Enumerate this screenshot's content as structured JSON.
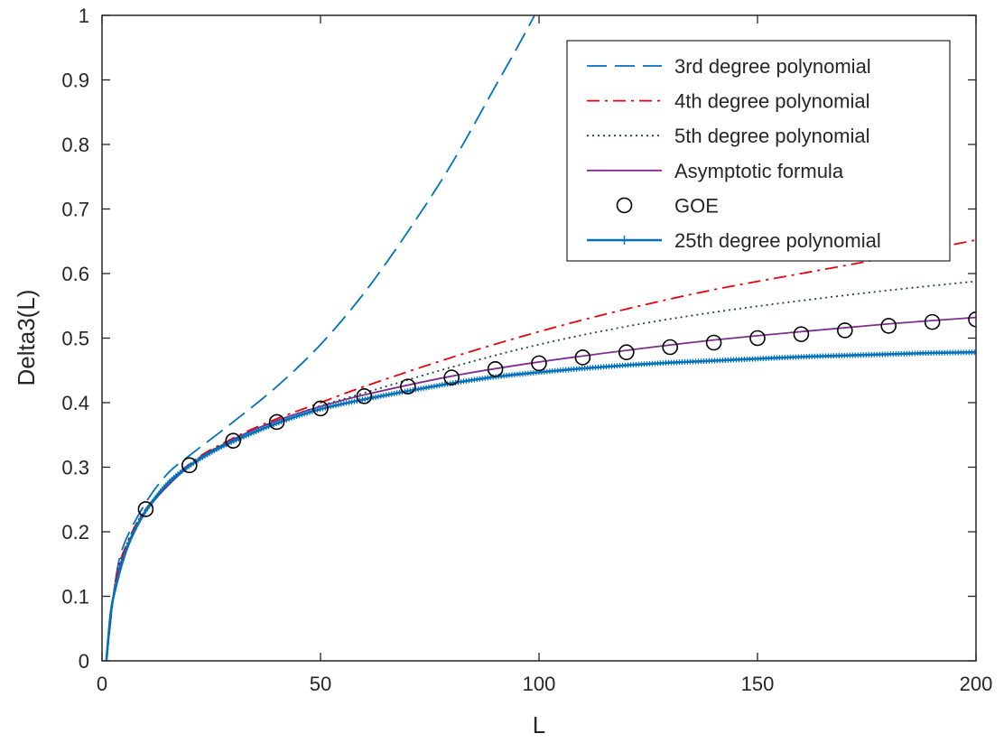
{
  "chart_data": {
    "type": "line",
    "title": "",
    "xlabel": "L",
    "ylabel": "Delta3(L)",
    "xlim": [
      0,
      200
    ],
    "ylim": [
      0,
      1
    ],
    "xticks": [
      0,
      50,
      100,
      150,
      200
    ],
    "xtick_labels": [
      "0",
      "50",
      "100",
      "150",
      "200"
    ],
    "yticks": [
      0,
      0.1,
      0.2,
      0.3,
      0.4,
      0.5,
      0.6,
      0.7,
      0.8,
      0.9,
      1
    ],
    "ytick_labels": [
      "0",
      "0.1",
      "0.2",
      "0.3",
      "0.4",
      "0.5",
      "0.6",
      "0.7",
      "0.8",
      "0.9",
      "1"
    ],
    "grid": false,
    "legend_position": "top-right",
    "series": [
      {
        "name": "3rd degree polynomial",
        "style": "dashed",
        "color": "#0072BD",
        "x": [
          1,
          3,
          5,
          10,
          15,
          20,
          30,
          40,
          50,
          60,
          70,
          80,
          90,
          95,
          99
        ],
        "y": [
          0,
          0.12,
          0.18,
          0.245,
          0.29,
          0.318,
          0.37,
          0.425,
          0.49,
          0.57,
          0.665,
          0.77,
          0.89,
          0.95,
          1.0
        ]
      },
      {
        "name": "4th degree polynomial",
        "style": "dashdot",
        "color": "#E8000B",
        "x": [
          1,
          3,
          5,
          10,
          20,
          30,
          40,
          50,
          60,
          80,
          100,
          120,
          140,
          160,
          180,
          200
        ],
        "y": [
          0,
          0.12,
          0.17,
          0.235,
          0.305,
          0.345,
          0.375,
          0.4,
          0.425,
          0.47,
          0.51,
          0.545,
          0.575,
          0.6,
          0.625,
          0.652
        ]
      },
      {
        "name": "5th degree polynomial",
        "style": "dotted",
        "color": "#1F4A3A",
        "x": [
          1,
          3,
          5,
          10,
          20,
          30,
          40,
          50,
          60,
          80,
          100,
          120,
          140,
          160,
          180,
          200
        ],
        "y": [
          0,
          0.12,
          0.17,
          0.235,
          0.304,
          0.343,
          0.372,
          0.395,
          0.415,
          0.455,
          0.49,
          0.518,
          0.54,
          0.558,
          0.574,
          0.588
        ]
      },
      {
        "name": "Asymptotic formula",
        "style": "solid",
        "color": "#7E2F8E",
        "x": [
          1,
          2,
          3,
          5,
          10,
          20,
          30,
          40,
          50,
          60,
          80,
          100,
          120,
          140,
          160,
          180,
          200
        ],
        "y": [
          0,
          0.07,
          0.115,
          0.165,
          0.232,
          0.302,
          0.343,
          0.372,
          0.394,
          0.412,
          0.441,
          0.463,
          0.481,
          0.497,
          0.51,
          0.522,
          0.532
        ]
      },
      {
        "name": "GOE",
        "style": "markers",
        "marker": "circle",
        "color": "#000000",
        "x": [
          10,
          20,
          30,
          40,
          50,
          60,
          70,
          80,
          90,
          100,
          110,
          120,
          130,
          140,
          150,
          160,
          170,
          180,
          190,
          200
        ],
        "y": [
          0.235,
          0.303,
          0.341,
          0.37,
          0.391,
          0.41,
          0.425,
          0.439,
          0.452,
          0.461,
          0.47,
          0.478,
          0.486,
          0.493,
          0.5,
          0.506,
          0.512,
          0.519,
          0.525,
          0.529
        ]
      },
      {
        "name": "25th degree polynomial",
        "style": "solid-plus",
        "color": "#0072BD",
        "x": [
          1,
          2,
          3,
          5,
          7,
          10,
          15,
          20,
          25,
          30,
          40,
          50,
          60,
          70,
          80,
          90,
          100,
          110,
          120,
          130,
          140,
          150,
          160,
          170,
          180,
          190,
          200
        ],
        "y": [
          0,
          0.075,
          0.11,
          0.16,
          0.195,
          0.232,
          0.275,
          0.302,
          0.323,
          0.34,
          0.368,
          0.39,
          0.405,
          0.418,
          0.43,
          0.44,
          0.447,
          0.453,
          0.458,
          0.462,
          0.465,
          0.468,
          0.471,
          0.473,
          0.475,
          0.477,
          0.478
        ]
      }
    ]
  }
}
